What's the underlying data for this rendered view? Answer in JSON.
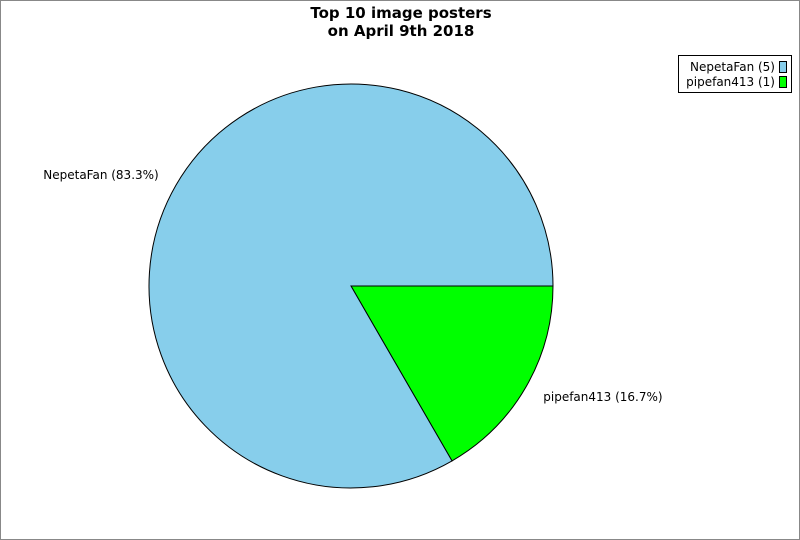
{
  "chart_data": {
    "type": "pie",
    "title": [
      "Top 10 image posters",
      "on April 9th 2018"
    ],
    "slices": [
      {
        "name": "NepetaFan",
        "value": 5,
        "percent": "83.3%",
        "label": "NepetaFan (83.3%)",
        "legend": "NepetaFan (5)",
        "color": "#87ceeb"
      },
      {
        "name": "pipefan413",
        "value": 1,
        "percent": "16.7%",
        "label": "pipefan413 (16.7%)",
        "legend": "pipefan413 (1)",
        "color": "#00ff00"
      }
    ],
    "legend_position": "top-right"
  }
}
